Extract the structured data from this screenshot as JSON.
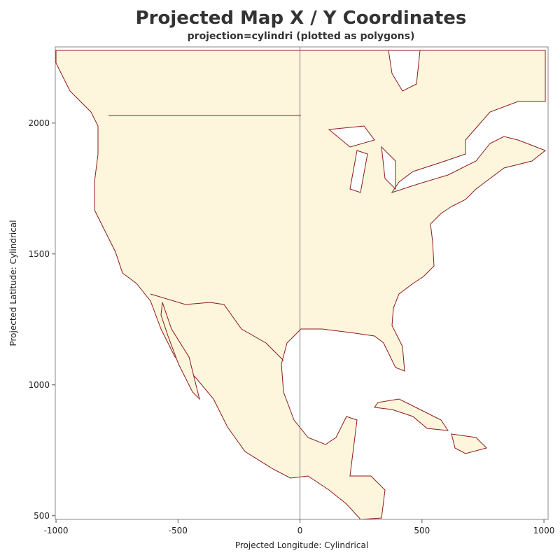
{
  "chart_data": {
    "type": "map",
    "title": "Projected Map X / Y Coordinates",
    "subtitle": "projection=cylindri (plotted as polygons)",
    "x_label": "Projected Longitude: Cylindrical",
    "y_label": "Projected Latitude: Cylindrical",
    "xlim": [
      -1003,
      1017
    ],
    "ylim": [
      486,
      2291
    ],
    "xticks": [
      -1000,
      -500,
      0,
      500,
      1000
    ],
    "yticks": [
      500,
      1000,
      1500,
      2000
    ],
    "refline": 0,
    "land_color": "#fdf5dc",
    "border_color": "#8b1a1a"
  }
}
